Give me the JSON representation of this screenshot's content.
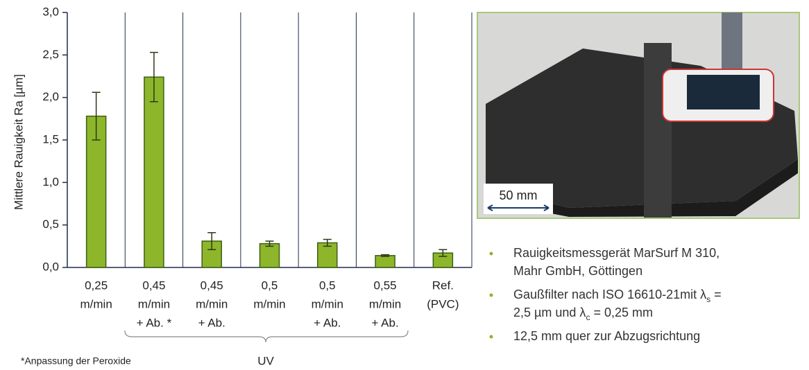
{
  "chart_data": {
    "type": "bar",
    "y_label": "Mittlere Rauigkeit Ra  [µm]",
    "categories": [
      [
        "0,25",
        "m/min"
      ],
      [
        "0,45",
        "m/min",
        "+  Ab. *"
      ],
      [
        "0,45",
        "m/min",
        "+ Ab."
      ],
      [
        "0,5",
        "m/min"
      ],
      [
        "0,5",
        "m/min",
        "+ Ab."
      ],
      [
        "0,55",
        "m/min",
        "+ Ab."
      ],
      [
        "Ref.",
        "(PVC)"
      ]
    ],
    "values": [
      1.78,
      2.24,
      0.31,
      0.28,
      0.29,
      0.14,
      0.17
    ],
    "errors": [
      0.28,
      0.29,
      0.1,
      0.03,
      0.04,
      0.01,
      0.04
    ],
    "color": "#8db62b",
    "ylim": [
      0,
      3
    ],
    "yticks": [
      {
        "value": 0,
        "label": "0,0"
      },
      {
        "value": 0.5,
        "label": "0,5"
      },
      {
        "value": 1,
        "label": "1,0"
      },
      {
        "value": 1.5,
        "label": "1,5"
      },
      {
        "value": 2,
        "label": "2,0"
      },
      {
        "value": 2.5,
        "label": "2,5"
      },
      {
        "value": 3,
        "label": "3,0"
      }
    ],
    "group_label": "UV",
    "footnote": "*Anpassung der Peroxide"
  },
  "photo": {
    "scale_label": "50 mm"
  },
  "bullets": [
    [
      [
        [
          "Rauigkeitsmessgerät MarSurf M 310,"
        ]
      ],
      [
        [
          "Mahr GmbH, Göttingen"
        ]
      ]
    ],
    [
      [
        [
          "Gaußfilter nach ISO 16610-21mit λ"
        ],
        [
          "s"
        ],
        [
          " ="
        ]
      ],
      [
        [
          "2,5 µm und λ"
        ],
        [
          "c"
        ],
        [
          " = 0,25 mm"
        ]
      ]
    ],
    [
      [
        [
          "12,5 mm quer zur Abzugsrichtung"
        ]
      ]
    ]
  ]
}
